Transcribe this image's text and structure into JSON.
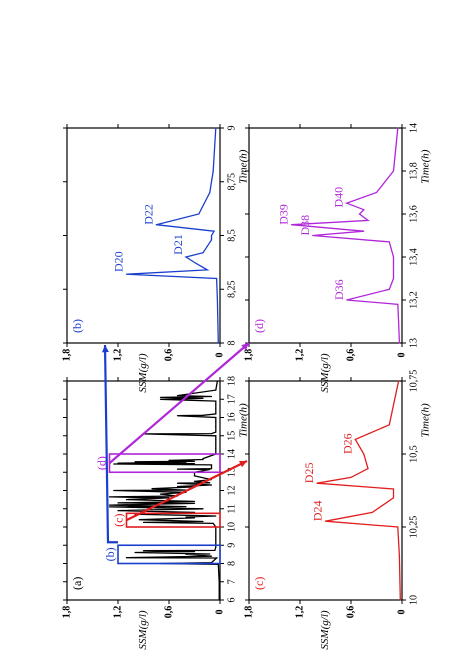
{
  "chart_data": [
    {
      "id": "a",
      "type": "line",
      "panel_label": "(a)",
      "xlabel": "Time(h)",
      "ylabel": "SSM(g/l)",
      "xlim": [
        6,
        18
      ],
      "ylim": [
        0,
        1.8
      ],
      "xticks": [
        "6",
        "7",
        "8",
        "9",
        "10",
        "11",
        "12",
        "13",
        "14",
        "15",
        "16",
        "17",
        "18"
      ],
      "yticks": [
        "0",
        "0,6",
        "1,2",
        "1,8"
      ],
      "color": "#000000",
      "series": [
        {
          "x": [
            6,
            7,
            7.95,
            8.0,
            8.05,
            8.3,
            8.32,
            8.4,
            8.5,
            8.52,
            8.6,
            8.65,
            8.7,
            8.72,
            8.9,
            9.3,
            9.5,
            9.7,
            10,
            10.2,
            10.25,
            10.3,
            10.4,
            10.5,
            10.55,
            10.6,
            10.7,
            10.8,
            10.9,
            11,
            11.1,
            11.12,
            11.2,
            11.3,
            11.32,
            11.4,
            11.5,
            11.6,
            11.65,
            11.7,
            11.8,
            11.9,
            12,
            12.02,
            12.1,
            12.2,
            12.22,
            12.3,
            12.4,
            12.42,
            12.5,
            12.6,
            12.8,
            13,
            13.15,
            13.17,
            13.2,
            13.4,
            13.45,
            13.47,
            13.5,
            13.55,
            13.57,
            13.6,
            13.65,
            13.7,
            13.75,
            14,
            14.3,
            14.5,
            14.8,
            15,
            15.1,
            15.12,
            15.2,
            15.5,
            15.8,
            16,
            16.1,
            16.12,
            16.2,
            16.5,
            16.7,
            16.9,
            17,
            17.05,
            17.1,
            17.15,
            17.2,
            17.5,
            18
          ],
          "y": [
            0.01,
            0.01,
            0.02,
            0.7,
            0.1,
            0.04,
            1.1,
            0.1,
            0.4,
            0.12,
            1.0,
            0.3,
            0.9,
            0.06,
            0.05,
            0.05,
            0.05,
            0.05,
            0.05,
            0.08,
            0.9,
            0.2,
            0.95,
            0.3,
            0.4,
            0.05,
            1.0,
            0.3,
            1.2,
            0.2,
            1.3,
            0.4,
            1.3,
            0.3,
            1.2,
            0.3,
            1.1,
            0.6,
            1.3,
            0.5,
            0.7,
            0.4,
            1.25,
            0.4,
            0.8,
            0.3,
            0.5,
            0.1,
            0.5,
            0.12,
            0.3,
            0.1,
            0.3,
            0.3,
            0.12,
            0.5,
            0.1,
            0.1,
            1.25,
            0.3,
            1.2,
            0.4,
            1.0,
            0.3,
            0.6,
            0.2,
            0.2,
            0.05,
            0.05,
            0.05,
            0.05,
            0.05,
            0.9,
            0.1,
            0.05,
            0.05,
            0.05,
            0.05,
            0.5,
            0.2,
            0.05,
            0.05,
            0.05,
            0.05,
            0.7,
            0.2,
            0.7,
            0.1,
            0.5,
            0.05,
            0.03
          ]
        }
      ],
      "boxes": [
        {
          "label": "(b)",
          "x0": 8,
          "x1": 9,
          "y0": 0,
          "y1": 1.2,
          "color": "#1a3fcf"
        },
        {
          "label": "(c)",
          "x0": 10,
          "x1": 10.75,
          "y0": 0,
          "y1": 1.1,
          "color": "#e11d1d"
        },
        {
          "label": "(d)",
          "x0": 13,
          "x1": 14,
          "y0": 0,
          "y1": 1.3,
          "color": "#b026d9"
        }
      ]
    },
    {
      "id": "b",
      "type": "line",
      "panel_label": "(b)",
      "xlabel": "Time(h)",
      "ylabel": "SSM(g/l)",
      "xlim": [
        8,
        9
      ],
      "ylim": [
        0,
        1.8
      ],
      "xticks": [
        "8",
        "8,25",
        "8,5",
        "8,75",
        "9"
      ],
      "yticks": [
        "0",
        "0,6",
        "1,2",
        "1,8"
      ],
      "color": "#1a3fcf",
      "series": [
        {
          "x": [
            8,
            8.2,
            8.3,
            8.32,
            8.34,
            8.37,
            8.4,
            8.42,
            8.45,
            8.48,
            8.5,
            8.52,
            8.55,
            8.6,
            8.7,
            8.8,
            9
          ],
          "y": [
            0.02,
            0.03,
            0.04,
            1.1,
            0.15,
            0.28,
            0.4,
            0.2,
            0.15,
            0.1,
            0.1,
            0.07,
            0.75,
            0.25,
            0.12,
            0.08,
            0.05
          ]
        }
      ],
      "annotations": [
        {
          "text": "D20",
          "x": 8.33,
          "y": 1.1
        },
        {
          "text": "D21",
          "x": 8.41,
          "y": 0.4
        },
        {
          "text": "D22",
          "x": 8.55,
          "y": 0.75
        }
      ]
    },
    {
      "id": "c",
      "type": "line",
      "panel_label": "(c)",
      "xlabel": "Time(h)",
      "ylabel": "SSM(g/l)",
      "xlim": [
        10,
        10.75
      ],
      "ylim": [
        0,
        1.8
      ],
      "xticks": [
        "10",
        "10,25",
        "10,5",
        "10,75"
      ],
      "yticks": [
        "0",
        "0,6",
        "1,2",
        "1,8"
      ],
      "color": "#e11d1d",
      "series": [
        {
          "x": [
            10,
            10.15,
            10.25,
            10.27,
            10.3,
            10.35,
            10.38,
            10.4,
            10.42,
            10.45,
            10.5,
            10.55,
            10.6,
            10.75
          ],
          "y": [
            0.02,
            0.03,
            0.05,
            0.9,
            0.35,
            0.1,
            0.1,
            1.0,
            0.6,
            0.4,
            0.45,
            0.55,
            0.15,
            0.04
          ]
        }
      ],
      "annotations": [
        {
          "text": "D24",
          "x": 10.27,
          "y": 0.9
        },
        {
          "text": "D25",
          "x": 10.4,
          "y": 1.0
        },
        {
          "text": "D26",
          "x": 10.5,
          "y": 0.55
        }
      ]
    },
    {
      "id": "d",
      "type": "line",
      "panel_label": "(d)",
      "xlabel": "Time(h)",
      "ylabel": "SSM(g/l)",
      "xlim": [
        13,
        14
      ],
      "ylim": [
        0,
        1.8
      ],
      "xticks": [
        "13",
        "13,2",
        "13,4",
        "13,6",
        "13,8",
        "14"
      ],
      "yticks": [
        "0",
        "0,6",
        "1,2",
        "1,8"
      ],
      "color": "#b026d9",
      "series": [
        {
          "x": [
            13,
            13.1,
            13.18,
            13.2,
            13.25,
            13.3,
            13.4,
            13.47,
            13.5,
            13.52,
            13.55,
            13.57,
            13.6,
            13.62,
            13.65,
            13.7,
            13.8,
            14
          ],
          "y": [
            0.03,
            0.04,
            0.05,
            0.65,
            0.15,
            0.1,
            0.1,
            0.15,
            1.05,
            0.45,
            1.3,
            0.4,
            0.5,
            0.45,
            0.65,
            0.3,
            0.1,
            0.05
          ]
        }
      ],
      "annotations": [
        {
          "text": "D36",
          "x": 13.2,
          "y": 0.65
        },
        {
          "text": "D38",
          "x": 13.5,
          "y": 1.05
        },
        {
          "text": "D39",
          "x": 13.55,
          "y": 1.3
        },
        {
          "text": "D40",
          "x": 13.63,
          "y": 0.65
        }
      ]
    }
  ]
}
